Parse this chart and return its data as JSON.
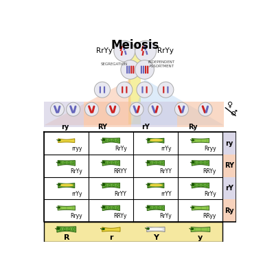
{
  "title": "Meiosis",
  "bg_color": "#ffffff",
  "grid_genotypes": [
    [
      "rryy",
      "RrYy",
      "rrYy",
      "Rryy"
    ],
    [
      "RrYy",
      "RRYY",
      "RrYY",
      "RRYy"
    ],
    [
      "rrYy",
      "RrYY",
      "rrYY",
      "RrYy"
    ],
    [
      "Rryy",
      "RRYy",
      "RrYy",
      "RRyy"
    ]
  ],
  "gamete_labels": [
    "ry",
    "RY",
    "rY",
    "Ry"
  ],
  "row_labels": [
    "ry",
    "RY",
    "rY",
    "Ry"
  ],
  "legend_labels": [
    "R",
    "r",
    "Y",
    "y"
  ],
  "col_bg_colors": [
    "#cdc8e0",
    "#f5c0a0",
    "#cdc8e0",
    "#f5c0a0"
  ],
  "row_bg_colors": [
    "#cdc8e0",
    "#f5c0a0",
    "#cdc8e0",
    "#f5c0a0"
  ],
  "legend_bg": "#f5e8a0",
  "orange_fan": "#f5a070",
  "blue_fan": "#a0c8f0",
  "yellow_bar": "#f5f0a0",
  "chr_blue": "#6666bb",
  "chr_red": "#cc2222",
  "circle_fill": "#e8e8f0",
  "circle_edge": "#aaaaaa"
}
